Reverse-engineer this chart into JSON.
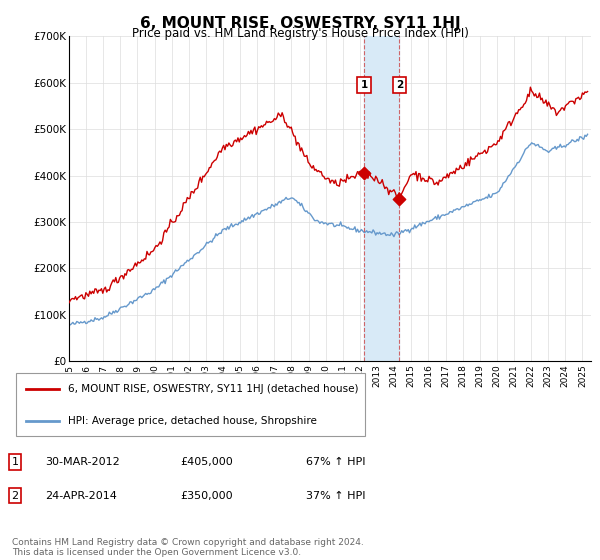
{
  "title": "6, MOUNT RISE, OSWESTRY, SY11 1HJ",
  "subtitle": "Price paid vs. HM Land Registry's House Price Index (HPI)",
  "title_fontsize": 11,
  "subtitle_fontsize": 9,
  "ylim": [
    0,
    700000
  ],
  "yticks": [
    0,
    100000,
    200000,
    300000,
    400000,
    500000,
    600000,
    700000
  ],
  "ytick_labels": [
    "£0",
    "£100K",
    "£200K",
    "£300K",
    "£400K",
    "£500K",
    "£600K",
    "£700K"
  ],
  "xlim_start": 1995.0,
  "xlim_end": 2025.5,
  "sale1_date": 2012.25,
  "sale1_price": 405000,
  "sale2_date": 2014.3,
  "sale2_price": 350000,
  "sale1_label": "1",
  "sale2_label": "2",
  "shade_color": "#d8eaf7",
  "line1_color": "#cc0000",
  "line2_color": "#6699cc",
  "legend1_text": "6, MOUNT RISE, OSWESTRY, SY11 1HJ (detached house)",
  "legend2_text": "HPI: Average price, detached house, Shropshire",
  "table_row1": [
    "1",
    "30-MAR-2012",
    "£405,000",
    "67% ↑ HPI"
  ],
  "table_row2": [
    "2",
    "24-APR-2014",
    "£350,000",
    "37% ↑ HPI"
  ],
  "footer_text": "Contains HM Land Registry data © Crown copyright and database right 2024.\nThis data is licensed under the Open Government Licence v3.0.",
  "background_color": "#ffffff"
}
